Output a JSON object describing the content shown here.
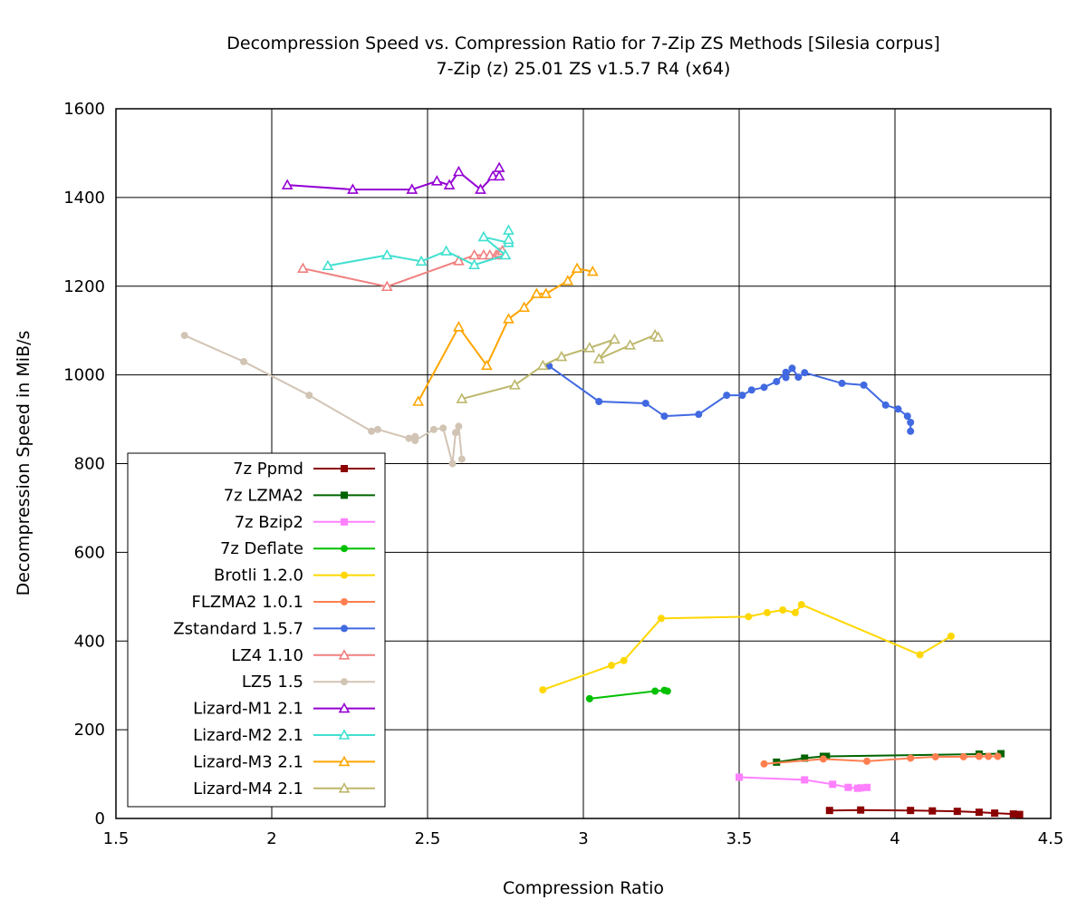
{
  "chart_data": {
    "type": "line",
    "title": "Decompression Speed vs. Compression Ratio for 7-Zip ZS Methods [Silesia corpus]",
    "subtitle": "7-Zip (z) 25.01 ZS v1.5.7 R4 (x64)",
    "xlabel": "Compression Ratio",
    "ylabel": "Decompression Speed in MiB/s",
    "xlim": [
      1.5,
      4.5
    ],
    "ylim": [
      0,
      1600
    ],
    "xticks": [
      "1.5",
      "2",
      "2.5",
      "3",
      "3.5",
      "4",
      "4.5"
    ],
    "yticks": [
      "0",
      "200",
      "400",
      "600",
      "800",
      "1000",
      "1200",
      "1400",
      "1600"
    ],
    "grid": true,
    "legend_position": "bottom-left",
    "series": [
      {
        "name": "7z Ppmd",
        "color": "#8b0000",
        "marker": "square",
        "x": [
          3.79,
          3.89,
          4.05,
          4.12,
          4.2,
          4.27,
          4.32,
          4.38,
          4.4
        ],
        "y": [
          18,
          19,
          18,
          17,
          16,
          14,
          12,
          10,
          9
        ]
      },
      {
        "name": "7z LZMA2",
        "color": "#006400",
        "marker": "square",
        "x": [
          3.62,
          3.71,
          3.77,
          3.78,
          4.27,
          4.34
        ],
        "y": [
          127,
          136,
          140,
          140,
          145,
          146
        ]
      },
      {
        "name": "7z Bzip2",
        "color": "#ff80ff",
        "marker": "square",
        "x": [
          3.5,
          3.71,
          3.8,
          3.85,
          3.88,
          3.89,
          3.91
        ],
        "y": [
          93,
          87,
          77,
          70,
          68,
          69,
          70
        ]
      },
      {
        "name": "7z Deflate",
        "color": "#00c000",
        "marker": "circle",
        "x": [
          3.02,
          3.23,
          3.26,
          3.27
        ],
        "y": [
          270,
          287,
          289,
          287
        ]
      },
      {
        "name": "Brotli 1.2.0",
        "color": "#ffd700",
        "marker": "circle",
        "x": [
          2.87,
          3.09,
          3.13,
          3.25,
          3.53,
          3.59,
          3.64,
          3.68,
          3.7,
          4.08,
          4.18
        ],
        "y": [
          290,
          345,
          356,
          451,
          455,
          464,
          470,
          464,
          482,
          369,
          411
        ]
      },
      {
        "name": "FLZMA2 1.0.1",
        "color": "#ff7f50",
        "marker": "circle",
        "x": [
          3.58,
          3.77,
          3.91,
          4.05,
          4.13,
          4.22,
          4.27,
          4.3,
          4.33
        ],
        "y": [
          123,
          134,
          129,
          136,
          139,
          139,
          140,
          140,
          140
        ]
      },
      {
        "name": "Zstandard 1.5.7",
        "color": "#4169e1",
        "marker": "circle",
        "x": [
          2.89,
          3.05,
          3.2,
          3.26,
          3.37,
          3.46,
          3.51,
          3.54,
          3.58,
          3.62,
          3.65,
          3.65,
          3.67,
          3.69,
          3.71,
          3.83,
          3.9,
          3.97,
          4.01,
          4.04,
          4.05,
          4.05
        ],
        "y": [
          1020,
          940,
          936,
          907,
          911,
          954,
          954,
          966,
          972,
          985,
          1006,
          994,
          1015,
          995,
          1005,
          981,
          977,
          932,
          923,
          907,
          893,
          873
        ]
      },
      {
        "name": "LZ4 1.10",
        "color": "#f08080",
        "marker": "triangle",
        "x": [
          2.1,
          2.37,
          2.6,
          2.65,
          2.68,
          2.7,
          2.72,
          2.73,
          2.74
        ],
        "y": [
          1240,
          1199,
          1257,
          1270,
          1270,
          1270,
          1270,
          1275,
          1280
        ]
      },
      {
        "name": "LZ5 1.5",
        "color": "#d2c4b4",
        "marker": "circle",
        "x": [
          1.72,
          1.91,
          2.12,
          2.32,
          2.34,
          2.44,
          2.46,
          2.46,
          2.52,
          2.55,
          2.58,
          2.59,
          2.6,
          2.61
        ],
        "y": [
          1089,
          1030,
          954,
          873,
          877,
          857,
          861,
          852,
          877,
          880,
          800,
          870,
          884,
          810
        ]
      },
      {
        "name": "Lizard-M1 2.1",
        "color": "#9400d3",
        "marker": "triangle",
        "x": [
          2.05,
          2.26,
          2.45,
          2.53,
          2.57,
          2.6,
          2.67,
          2.71,
          2.73,
          2.73
        ],
        "y": [
          1428,
          1418,
          1418,
          1437,
          1428,
          1458,
          1418,
          1448,
          1448,
          1467
        ]
      },
      {
        "name": "Lizard-M2 2.1",
        "color": "#40e0d0",
        "marker": "triangle",
        "x": [
          2.18,
          2.37,
          2.48,
          2.56,
          2.65,
          2.75,
          2.68,
          2.76,
          2.76,
          2.76
        ],
        "y": [
          1246,
          1270,
          1256,
          1279,
          1248,
          1270,
          1311,
          1298,
          1305,
          1326
        ]
      },
      {
        "name": "Lizard-M3 2.1",
        "color": "#ffa500",
        "marker": "triangle",
        "x": [
          2.47,
          2.6,
          2.69,
          2.76,
          2.81,
          2.85,
          2.88,
          2.95,
          2.98,
          3.03
        ],
        "y": [
          940,
          1108,
          1021,
          1126,
          1152,
          1183,
          1183,
          1212,
          1240,
          1233
        ]
      },
      {
        "name": "Lizard-M4 2.1",
        "color": "#bdb76b",
        "marker": "triangle",
        "x": [
          2.61,
          2.78,
          2.87,
          2.93,
          3.02,
          3.1,
          3.05,
          3.15,
          3.23,
          3.24
        ],
        "y": [
          946,
          977,
          1021,
          1041,
          1061,
          1080,
          1036,
          1067,
          1090,
          1085
        ]
      }
    ]
  }
}
